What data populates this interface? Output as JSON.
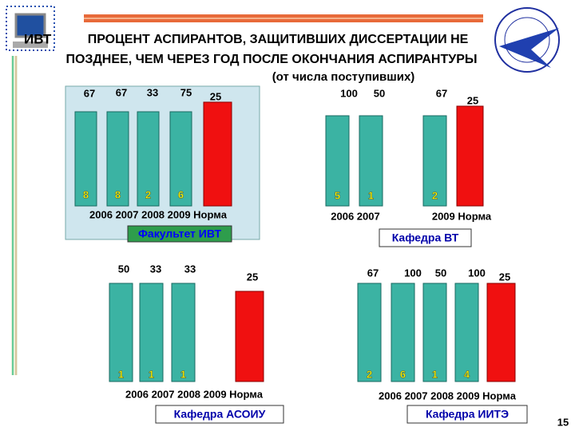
{
  "header": {
    "badge": "ИВТ",
    "title_lines": [
      "ПРОЦЕНТ АСПИРАНТОВ, ЗАЩИТИВШИХ ДИССЕРТАЦИИ НЕ",
      "ПОЗДНЕЕ, ЧЕМ ЧЕРЕЗ ГОД ПОСЛЕ ОКОНЧАНИЯ АСПИРАНТУРЫ"
    ],
    "subtitle": "(от числа поступивших)"
  },
  "panels": [
    {
      "name": "Факультет ИВТ",
      "bars": [
        {
          "top": 67,
          "bottom": 8
        },
        {
          "top": 67,
          "bottom": 8
        },
        {
          "top": 33,
          "bottom": 2
        },
        {
          "top": 75,
          "bottom": 6
        }
      ],
      "norm": 25,
      "axis_labels": [
        "2006 2007 2008 2009 Норма"
      ]
    },
    {
      "name": "Кафедра ВТ",
      "bars": [
        {
          "top": 100,
          "bottom": 5
        },
        {
          "top": 50,
          "bottom": 1
        },
        {
          "top": 67,
          "bottom": 2
        }
      ],
      "norm": 25,
      "axis_labels": [
        "2006 2007",
        "2009 Норма"
      ]
    },
    {
      "name": "Кафедра АСОИУ",
      "bars": [
        {
          "top": 50,
          "bottom": 1
        },
        {
          "top": 33,
          "bottom": 1
        },
        {
          "top": 33,
          "bottom": 1
        }
      ],
      "norm": 25,
      "axis_labels": [
        "2006 2007 2008 2009 Норма"
      ]
    },
    {
      "name": "Кафедра ИИТЭ",
      "bars": [
        {
          "top": 67,
          "bottom": 2
        },
        {
          "top": 100,
          "bottom": 6
        },
        {
          "top": 50,
          "bottom": 1
        },
        {
          "top": 100,
          "bottom": 4
        }
      ],
      "norm": 25,
      "axis_labels": [
        "2006 2007 2008 2009 Норма"
      ]
    }
  ],
  "page_number": "15"
}
